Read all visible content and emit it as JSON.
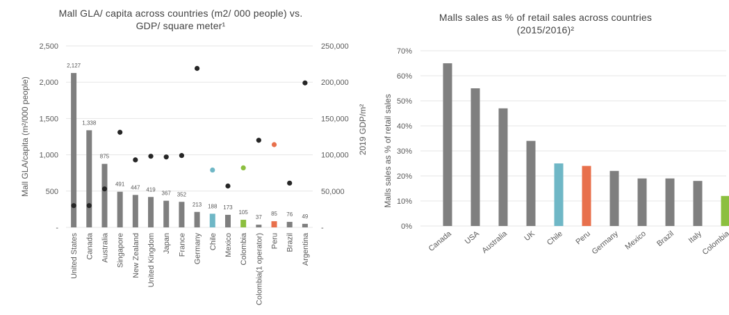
{
  "chart_data": [
    {
      "type": "bar",
      "title_line1": "Mall GLA/ capita across countries (m2/ 000 people) vs.",
      "title_line2": "GDP/ square meter¹",
      "ylabel": "Mall GLA/capita (m²/000 people)",
      "y2label": "2019 GDP/m²",
      "ylim": [
        0,
        2500
      ],
      "y2lim": [
        0,
        250000
      ],
      "yticks": [
        "-",
        "500",
        "1,000",
        "1,500",
        "2,000",
        "2,500"
      ],
      "ytick_values": [
        0,
        500,
        1000,
        1500,
        2000,
        2500
      ],
      "y2ticks": [
        "-",
        "50,000",
        "100,000",
        "150,000",
        "200,000",
        "250,000"
      ],
      "y2tick_values": [
        0,
        50000,
        100000,
        150000,
        200000,
        250000
      ],
      "categories": [
        "United States",
        "Canada",
        "Australia",
        "Singapore",
        "New Zealand",
        "United Kingdom",
        "Japan",
        "France",
        "Germany",
        "Chile",
        "Mexico",
        "Colombia",
        "Colombia(1 operator)",
        "Peru",
        "Brazil",
        "Argentina"
      ],
      "values": [
        2127,
        1338,
        875,
        491,
        447,
        419,
        367,
        352,
        213,
        188,
        173,
        105,
        37,
        85,
        76,
        49
      ],
      "value_labels": [
        "2,127",
        "1,338",
        "875",
        "491",
        "447",
        "419",
        "367",
        "352",
        "213",
        "188",
        "173",
        "105",
        "37",
        "85",
        "76",
        "49"
      ],
      "bar_colors": [
        "#7f7f7f",
        "#7f7f7f",
        "#7f7f7f",
        "#7f7f7f",
        "#7f7f7f",
        "#7f7f7f",
        "#7f7f7f",
        "#7f7f7f",
        "#7f7f7f",
        "#6fb7c6",
        "#7f7f7f",
        "#8cbf3f",
        "#7f7f7f",
        "#e8704c",
        "#7f7f7f",
        "#7f7f7f"
      ],
      "gdp_per_m2": [
        30000,
        30000,
        53000,
        131000,
        93000,
        98000,
        97000,
        99000,
        219000,
        79000,
        57000,
        82000,
        120000,
        114000,
        61000,
        199000
      ],
      "dot_colors": [
        "#262626",
        "#262626",
        "#262626",
        "#262626",
        "#262626",
        "#262626",
        "#262626",
        "#262626",
        "#262626",
        "#6fb7c6",
        "#262626",
        "#8cbf3f",
        "#262626",
        "#e8704c",
        "#262626",
        "#262626"
      ],
      "grid": true
    },
    {
      "type": "bar",
      "title_line1": "Malls sales as % of retail sales across countries",
      "title_line2": "(2015/2016)²",
      "ylabel": "Malls sales as % of retail sales",
      "ylim": [
        0,
        70
      ],
      "yticks": [
        "0%",
        "10%",
        "20%",
        "30%",
        "40%",
        "50%",
        "60%",
        "70%"
      ],
      "ytick_values": [
        0,
        10,
        20,
        30,
        40,
        50,
        60,
        70
      ],
      "categories": [
        "Canada",
        "USA",
        "Australia",
        "UK",
        "Chile",
        "Peru",
        "Germany",
        "Mexico",
        "Brazil",
        "Italy",
        "Colombia"
      ],
      "values": [
        65,
        55,
        47,
        34,
        25,
        24,
        22,
        19,
        19,
        18,
        12
      ],
      "bar_colors": [
        "#7f7f7f",
        "#7f7f7f",
        "#7f7f7f",
        "#7f7f7f",
        "#6fb7c6",
        "#e8704c",
        "#7f7f7f",
        "#7f7f7f",
        "#7f7f7f",
        "#7f7f7f",
        "#8cbf3f"
      ],
      "grid": true
    }
  ]
}
